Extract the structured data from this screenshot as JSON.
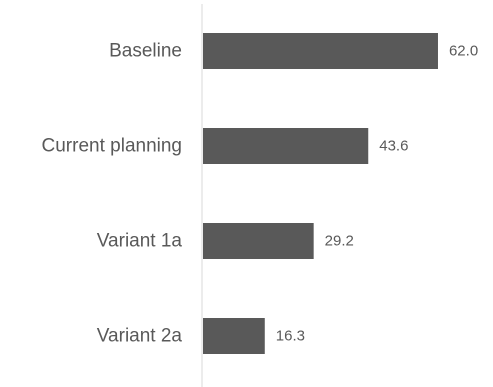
{
  "chart_data": {
    "type": "bar",
    "orientation": "horizontal",
    "categories": [
      "Baseline",
      "Current planning",
      "Variant 1a",
      "Variant 2a"
    ],
    "values": [
      62.0,
      43.6,
      29.2,
      16.3
    ],
    "data_labels": [
      "62.0",
      "43.6",
      "29.2",
      "16.3"
    ],
    "title": "",
    "xlabel": "",
    "ylabel": "",
    "xlim": [
      0,
      70
    ],
    "grid": false,
    "legend": "none",
    "colors": {
      "bar": "#595959",
      "text": "#595959",
      "axis": "#d9d9d9"
    }
  }
}
